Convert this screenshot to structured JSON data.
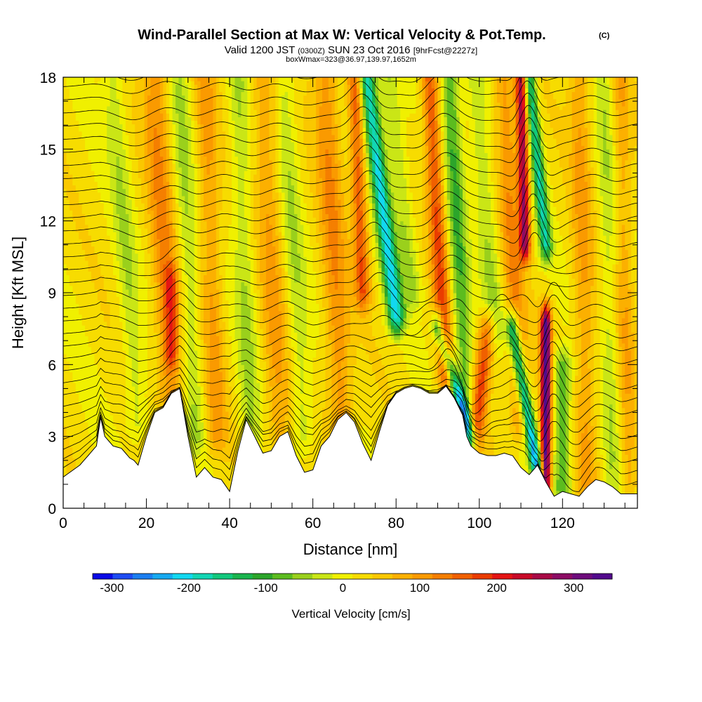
{
  "header": {
    "title": "Wind-Parallel Section at Max W: Vertical Velocity & Pot.Temp.",
    "copyright": "(C)",
    "valid_line_a": "Valid 1200 JST",
    "valid_line_b": "(0300Z)",
    "valid_line_c": "SUN 23 Oct 2016",
    "valid_line_d": "[9hrFcst@2227z]",
    "box_line": "boxWmax=323@36.97,139.97,1652m"
  },
  "colorbar": {
    "label": "Vertical Velocity [cm/s]",
    "tick_labels": [
      "-300",
      "-200",
      "-100",
      "0",
      "100",
      "200",
      "300"
    ],
    "colors": [
      "#0a0ae6",
      "#1e4cf2",
      "#1b7ef0",
      "#16a9f0",
      "#12d8f0",
      "#12d6b4",
      "#12c87d",
      "#1ab44e",
      "#2ca52b",
      "#5cbc1f",
      "#9ad01c",
      "#cae616",
      "#f0f000",
      "#f7dc00",
      "#fac800",
      "#fcb000",
      "#fa9a00",
      "#f57f00",
      "#f06000",
      "#ea3c00",
      "#e41414",
      "#c80a28",
      "#a80a46",
      "#8c0c64",
      "#6e0c7c",
      "#520a8c"
    ],
    "range": [
      -325,
      350
    ]
  },
  "chart_data": {
    "type": "heatmap",
    "title": "Wind-Parallel Section at Max W: Vertical Velocity & Pot.Temp.",
    "xlabel": "Distance [nm]",
    "ylabel": "Height [Kft MSL]",
    "xlim": [
      0,
      138
    ],
    "ylim": [
      0,
      18
    ],
    "x_ticks": [
      0,
      20,
      40,
      60,
      80,
      100,
      120
    ],
    "y_ticks": [
      0,
      3,
      6,
      9,
      12,
      15,
      18
    ],
    "variable": "Vertical Velocity [cm/s]",
    "contour_variable": "Potential Temperature",
    "max_w": 323,
    "terrain_kft": [
      [
        0,
        1.3
      ],
      [
        4,
        1.8
      ],
      [
        8,
        2.6
      ],
      [
        9,
        3.8
      ],
      [
        10,
        3.0
      ],
      [
        12,
        2.6
      ],
      [
        14,
        2.5
      ],
      [
        16,
        2.1
      ],
      [
        17,
        2.0
      ],
      [
        18,
        1.8
      ],
      [
        20,
        3.0
      ],
      [
        22,
        4.0
      ],
      [
        24,
        4.2
      ],
      [
        26,
        4.8
      ],
      [
        28,
        5.0
      ],
      [
        30,
        3.0
      ],
      [
        32,
        1.3
      ],
      [
        34,
        1.7
      ],
      [
        36,
        1.3
      ],
      [
        38,
        1.2
      ],
      [
        40,
        0.7
      ],
      [
        42,
        2.4
      ],
      [
        44,
        3.7
      ],
      [
        46,
        3.0
      ],
      [
        48,
        2.3
      ],
      [
        50,
        2.4
      ],
      [
        52,
        3.0
      ],
      [
        54,
        3.2
      ],
      [
        56,
        2.2
      ],
      [
        58,
        1.5
      ],
      [
        60,
        1.6
      ],
      [
        62,
        2.6
      ],
      [
        64,
        3.0
      ],
      [
        66,
        3.7
      ],
      [
        68,
        4.0
      ],
      [
        70,
        3.6
      ],
      [
        72,
        2.7
      ],
      [
        74,
        2.0
      ],
      [
        76,
        3.2
      ],
      [
        78,
        4.3
      ],
      [
        80,
        4.8
      ],
      [
        82,
        5.0
      ],
      [
        84,
        5.1
      ],
      [
        86,
        5.0
      ],
      [
        88,
        4.8
      ],
      [
        90,
        4.8
      ],
      [
        92,
        5.1
      ],
      [
        94,
        4.6
      ],
      [
        96,
        3.9
      ],
      [
        97,
        3.0
      ],
      [
        98,
        2.6
      ],
      [
        100,
        2.3
      ],
      [
        102,
        2.2
      ],
      [
        104,
        2.2
      ],
      [
        106,
        2.3
      ],
      [
        108,
        2.2
      ],
      [
        110,
        1.7
      ],
      [
        112,
        1.4
      ],
      [
        114,
        1.8
      ],
      [
        116,
        1.1
      ],
      [
        118,
        0.5
      ],
      [
        120,
        0.7
      ],
      [
        122,
        0.6
      ],
      [
        124,
        0.5
      ],
      [
        126,
        0.9
      ],
      [
        128,
        1.2
      ],
      [
        130,
        1.1
      ],
      [
        132,
        0.9
      ],
      [
        134,
        0.6
      ],
      [
        136,
        0.6
      ],
      [
        138,
        0.6
      ]
    ],
    "features_cm_s": [
      {
        "x0": 26,
        "x1": 22,
        "ya": 4.5,
        "yb": 18,
        "w": 3.0,
        "amp": 95
      },
      {
        "x0": 26,
        "x1": 26,
        "ya": 6.5,
        "yb": 9.5,
        "w": 1.6,
        "amp": 110
      },
      {
        "x0": 18,
        "x1": 12,
        "ya": 3.5,
        "yb": 18,
        "w": 2.5,
        "amp": -55
      },
      {
        "x0": 32,
        "x1": 28,
        "ya": 3.0,
        "yb": 18,
        "w": 2.5,
        "amp": -60
      },
      {
        "x0": 37,
        "x1": 34,
        "ya": 3.0,
        "yb": 18,
        "w": 2.5,
        "amp": 75
      },
      {
        "x0": 45,
        "x1": 42,
        "ya": 3.0,
        "yb": 18,
        "w": 2.5,
        "amp": -60
      },
      {
        "x0": 52,
        "x1": 48,
        "ya": 3.0,
        "yb": 18,
        "w": 3.0,
        "amp": 70
      },
      {
        "x0": 58,
        "x1": 53,
        "ya": 3.0,
        "yb": 18,
        "w": 2.5,
        "amp": -55
      },
      {
        "x0": 67,
        "x1": 63,
        "ya": 3.5,
        "yb": 18,
        "w": 3.0,
        "amp": 90
      },
      {
        "x0": 72,
        "x1": 70,
        "ya": 9.0,
        "yb": 18,
        "w": 1.8,
        "amp": 140
      },
      {
        "x0": 80,
        "x1": 73,
        "ya": 8.0,
        "yb": 18,
        "w": 2.0,
        "amp": -220
      },
      {
        "x0": 84,
        "x1": 78,
        "ya": 9.0,
        "yb": 18,
        "w": 2.5,
        "amp": -70
      },
      {
        "x0": 92,
        "x1": 88,
        "ya": 5.5,
        "yb": 18,
        "w": 2.0,
        "amp": 150
      },
      {
        "x0": 97,
        "x1": 93,
        "ya": 3.0,
        "yb": 18,
        "w": 2.2,
        "amp": -110
      },
      {
        "x0": 98,
        "x1": 90,
        "ya": 3.0,
        "yb": 7.5,
        "w": 1.4,
        "amp": -200
      },
      {
        "x0": 99,
        "x1": 102,
        "ya": 3.0,
        "yb": 7.5,
        "w": 2.0,
        "amp": 150
      },
      {
        "x0": 104,
        "x1": 99,
        "ya": 7.5,
        "yb": 18,
        "w": 2.5,
        "amp": -65
      },
      {
        "x0": 110,
        "x1": 106,
        "ya": 3.5,
        "yb": 18,
        "w": 2.5,
        "amp": 90
      },
      {
        "x0": 111,
        "x1": 110,
        "ya": 11.0,
        "yb": 18,
        "w": 1.3,
        "amp": 250
      },
      {
        "x0": 116,
        "x1": 112,
        "ya": 11.0,
        "yb": 18,
        "w": 1.5,
        "amp": -180
      },
      {
        "x0": 114,
        "x1": 108,
        "ya": 1.5,
        "yb": 7.5,
        "w": 1.5,
        "amp": -240
      },
      {
        "x0": 116,
        "x1": 116,
        "ya": 1.0,
        "yb": 7.8,
        "w": 1.2,
        "amp": 330
      },
      {
        "x0": 120,
        "x1": 120,
        "ya": 0.8,
        "yb": 6.0,
        "w": 2.2,
        "amp": -110
      },
      {
        "x0": 126,
        "x1": 124,
        "ya": 1.0,
        "yb": 18,
        "w": 2.5,
        "amp": 70
      },
      {
        "x0": 132,
        "x1": 130,
        "ya": 1.0,
        "yb": 18,
        "w": 2.0,
        "amp": -50
      },
      {
        "x0": 136,
        "x1": 134,
        "ya": 1.0,
        "yb": 18,
        "w": 2.0,
        "amp": 60
      }
    ]
  }
}
